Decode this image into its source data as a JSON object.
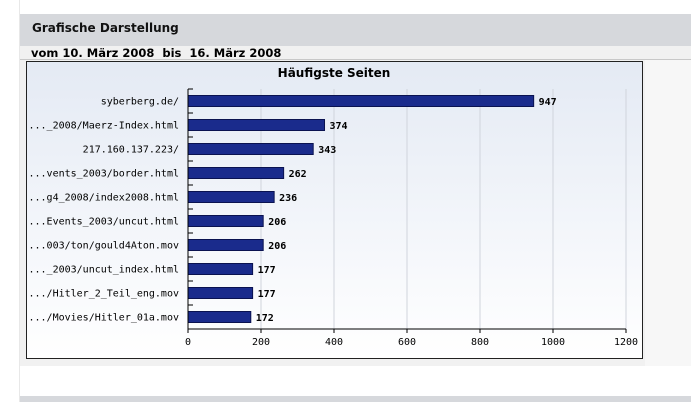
{
  "section_title": "Grafische Darstellung",
  "date_range": "vom 10. März 2008  bis  16. März 2008",
  "colors": {
    "bar_fill": "#1a2b8c",
    "bar_stroke": "#0a1250",
    "header_bg": "#d6d8dc",
    "chart_bg": "#f0f2f7"
  },
  "chart_data": {
    "type": "bar",
    "orientation": "horizontal",
    "title": "Häufigste Seiten",
    "categories": [
      "syberberg.de/",
      "..._2008/Maerz-Index.html",
      "217.160.137.223/",
      "...vents_2003/border.html",
      "...g4_2008/index2008.html",
      "...Events_2003/uncut.html",
      "...003/ton/gould4Aton.mov",
      "..._2003/uncut_index.html",
      ".../Hitler_2_Teil_eng.mov",
      ".../Movies/Hitler_01a.mov"
    ],
    "values": [
      947,
      374,
      343,
      262,
      236,
      206,
      206,
      177,
      177,
      172
    ],
    "xlim": [
      0,
      1200
    ],
    "xticks": [
      "0",
      "200",
      "400",
      "600",
      "800",
      "1000",
      "1200"
    ],
    "grid": true,
    "legend": "none"
  }
}
